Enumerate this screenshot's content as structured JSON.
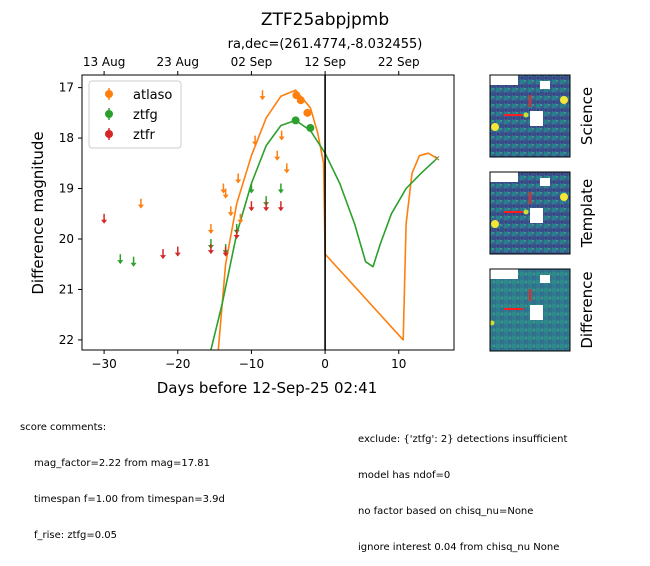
{
  "chart_data": {
    "type": "scatter",
    "title": "ZTF25abpjpmb",
    "subtitle": "ra,dec=(261.4774,-8.032455)",
    "xlabel": "Days before 12-Sep-25 02:41",
    "ylabel": "Difference magnitude",
    "xlim": [
      -33,
      17.5
    ],
    "ylim": [
      22.2,
      16.75
    ],
    "y_inverted": true,
    "x_ticks": [
      -30,
      -20,
      -10,
      0,
      10
    ],
    "y_ticks": [
      17,
      18,
      19,
      20,
      21,
      22
    ],
    "top_axis_ticks": [
      {
        "x": -30,
        "label": "13 Aug"
      },
      {
        "x": -20,
        "label": "23 Aug"
      },
      {
        "x": -10,
        "label": "02 Sep"
      },
      {
        "x": 0,
        "label": "12 Sep"
      },
      {
        "x": 10,
        "label": "22 Sep"
      }
    ],
    "vline_x": 0,
    "legend_position": "upper-left",
    "series": [
      {
        "name": "atlaso",
        "color": "#ff7f0e",
        "detections": [
          {
            "x": -3.9,
            "y": 17.15
          },
          {
            "x": -3.3,
            "y": 17.25
          },
          {
            "x": -2.4,
            "y": 17.5
          }
        ],
        "upper_limits": [
          {
            "x": -25,
            "y": 19.3
          },
          {
            "x": -15.5,
            "y": 19.8
          },
          {
            "x": -13.8,
            "y": 19.0
          },
          {
            "x": -13.5,
            "y": 19.1
          },
          {
            "x": -12.8,
            "y": 19.45
          },
          {
            "x": -11.8,
            "y": 18.8
          },
          {
            "x": -11.5,
            "y": 19.6
          },
          {
            "x": -9.5,
            "y": 18.05
          },
          {
            "x": -8.5,
            "y": 17.15
          },
          {
            "x": -6.5,
            "y": 18.35
          },
          {
            "x": -5.9,
            "y": 17.95
          },
          {
            "x": -5.2,
            "y": 18.6
          }
        ],
        "model_curve": [
          {
            "x": -14.5,
            "y": 22.2
          },
          {
            "x": -13.5,
            "y": 20.5
          },
          {
            "x": -12,
            "y": 19.3
          },
          {
            "x": -10,
            "y": 18.35
          },
          {
            "x": -8,
            "y": 17.6
          },
          {
            "x": -6,
            "y": 17.17
          },
          {
            "x": -4,
            "y": 17.05
          },
          {
            "x": -2,
            "y": 17.4
          },
          {
            "x": -1,
            "y": 17.9
          },
          {
            "x": -0.2,
            "y": 18.5
          },
          {
            "x": 0,
            "y": 20.3
          },
          {
            "x": 10.6,
            "y": 22.0
          },
          {
            "x": 11,
            "y": 19.7
          },
          {
            "x": 11.8,
            "y": 18.7
          },
          {
            "x": 12.8,
            "y": 18.35
          },
          {
            "x": 14,
            "y": 18.3
          },
          {
            "x": 15.2,
            "y": 18.4
          }
        ]
      },
      {
        "name": "ztfg",
        "color": "#2ca02c",
        "detections": [
          {
            "x": -4,
            "y": 17.65
          },
          {
            "x": -2,
            "y": 17.8
          }
        ],
        "upper_limits": [
          {
            "x": -27.8,
            "y": 20.4
          },
          {
            "x": -26,
            "y": 20.45
          },
          {
            "x": -15.5,
            "y": 20.1
          },
          {
            "x": -13.5,
            "y": 20.2
          },
          {
            "x": -12,
            "y": 19.8
          },
          {
            "x": -10,
            "y": 19.0
          },
          {
            "x": -8,
            "y": 19.25
          },
          {
            "x": -6,
            "y": 19.0
          }
        ],
        "model_curve": [
          {
            "x": -15.5,
            "y": 22.2
          },
          {
            "x": -14,
            "y": 21.3
          },
          {
            "x": -12,
            "y": 19.9
          },
          {
            "x": -10,
            "y": 18.9
          },
          {
            "x": -8,
            "y": 18.15
          },
          {
            "x": -6,
            "y": 17.75
          },
          {
            "x": -4,
            "y": 17.65
          },
          {
            "x": -2,
            "y": 17.85
          },
          {
            "x": 0,
            "y": 18.3
          },
          {
            "x": 2,
            "y": 18.9
          },
          {
            "x": 4,
            "y": 19.7
          },
          {
            "x": 5.5,
            "y": 20.45
          },
          {
            "x": 6.5,
            "y": 20.55
          },
          {
            "x": 7.5,
            "y": 20.1
          },
          {
            "x": 9,
            "y": 19.5
          },
          {
            "x": 11,
            "y": 19.0
          },
          {
            "x": 13,
            "y": 18.7
          },
          {
            "x": 15.2,
            "y": 18.4
          }
        ]
      },
      {
        "name": "ztfr",
        "color": "#d62728",
        "detections": [],
        "upper_limits": [
          {
            "x": -30,
            "y": 19.6
          },
          {
            "x": -22,
            "y": 20.3
          },
          {
            "x": -20,
            "y": 20.25
          },
          {
            "x": -15.5,
            "y": 20.2
          },
          {
            "x": -13.5,
            "y": 20.25
          },
          {
            "x": -12,
            "y": 19.9
          },
          {
            "x": -10,
            "y": 19.35
          },
          {
            "x": -8,
            "y": 19.35
          },
          {
            "x": -6,
            "y": 19.35
          }
        ]
      }
    ]
  },
  "cutouts": [
    {
      "label": "Science"
    },
    {
      "label": "Template"
    },
    {
      "label": "Difference"
    }
  ],
  "notes_left": {
    "heading": "score comments:",
    "lines": [
      "mag_factor=2.22 from mag=17.81",
      "timespan f=1.00 from timespan=3.9d",
      "f_rise: ztfg=0.05"
    ]
  },
  "notes_right": {
    "lines": [
      "exclude: {'ztfg': 2} detections insufficient",
      "model has ndof=0",
      "no factor based on chisq_nu=None",
      "ignore interest 0.04 from chisq_nu None"
    ]
  }
}
